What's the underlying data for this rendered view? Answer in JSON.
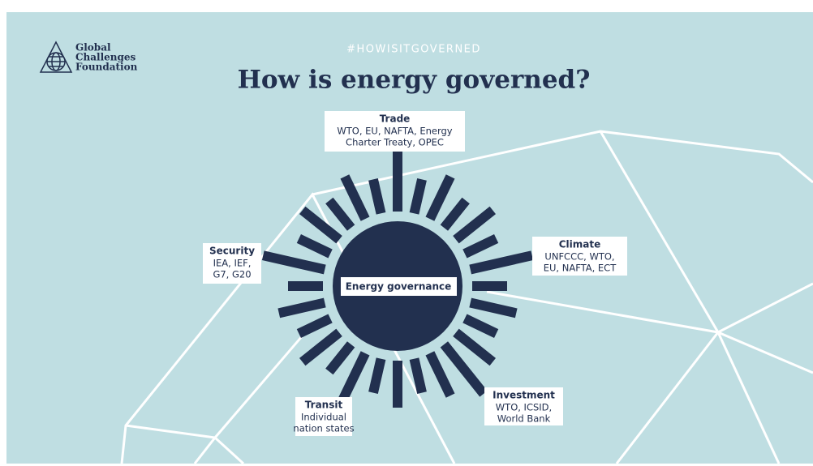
{
  "header": {
    "logo": [
      "Global",
      "Challenges",
      "Foundation"
    ],
    "hashtag": "#HOWISITGOVERNED",
    "title": "How is energy governed?"
  },
  "center": {
    "label": "Energy governance"
  },
  "nodes": [
    {
      "title": "Trade",
      "lines": [
        "WTO, EU, NAFTA, Energy",
        "Charter Treaty, OPEC"
      ]
    },
    {
      "title": "Security",
      "lines": [
        "IEA, IEF,",
        "G7, G20"
      ]
    },
    {
      "title": "Climate",
      "lines": [
        "UNFCCC, WTO,",
        "EU, NAFTA, ECT"
      ]
    },
    {
      "title": "Investment",
      "lines": [
        "WTO, ICSID,",
        "World Bank"
      ]
    },
    {
      "title": "Transit",
      "lines": [
        "Individual",
        "nation states"
      ]
    }
  ]
}
